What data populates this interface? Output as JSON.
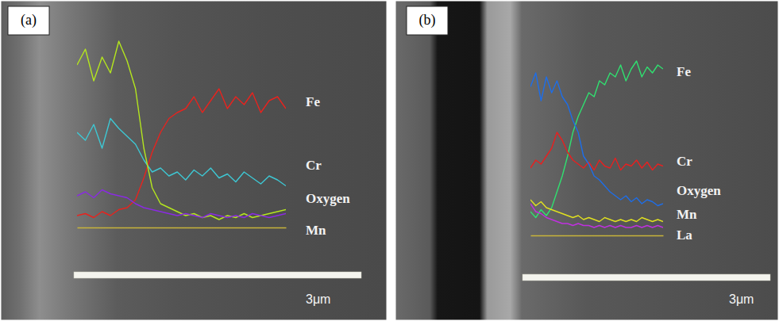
{
  "chart_data": [
    {
      "type": "line",
      "title": "(a)",
      "annotations": [
        "3μm"
      ],
      "tick_labels": false,
      "xlim": [
        0,
        100
      ],
      "ylim": [
        0,
        100
      ],
      "x": [
        0,
        4,
        8,
        12,
        16,
        20,
        24,
        28,
        32,
        36,
        40,
        44,
        48,
        52,
        56,
        60,
        64,
        68,
        72,
        76,
        80,
        84,
        88,
        92,
        96,
        100
      ],
      "series": [
        {
          "name": "Fe",
          "color": "#e8231e",
          "values": [
            6,
            7,
            5,
            8,
            6,
            9,
            10,
            14,
            25,
            38,
            48,
            55,
            58,
            60,
            66,
            58,
            64,
            70,
            60,
            66,
            62,
            68,
            58,
            64,
            66,
            60
          ]
        },
        {
          "name": "Cr",
          "color": "#3ec7d3",
          "values": [
            48,
            44,
            52,
            40,
            55,
            50,
            46,
            42,
            34,
            28,
            30,
            26,
            28,
            24,
            29,
            26,
            30,
            25,
            27,
            23,
            28,
            25,
            22,
            26,
            24,
            21
          ]
        },
        {
          "name": "Oxygen",
          "color": "#b4e61e",
          "values": [
            82,
            90,
            74,
            86,
            78,
            94,
            84,
            70,
            40,
            20,
            12,
            10,
            8,
            6,
            7,
            5,
            6,
            4,
            6,
            5,
            7,
            5,
            6,
            7,
            8,
            9
          ]
        },
        {
          "name": "Mn",
          "color": "#8a2be2",
          "values": [
            16,
            18,
            15,
            19,
            17,
            16,
            15,
            12,
            10,
            9,
            8,
            7,
            6,
            7,
            6,
            5,
            7,
            6,
            5,
            6,
            5,
            7,
            6,
            5,
            6,
            7
          ]
        }
      ]
    },
    {
      "type": "line",
      "title": "(b)",
      "annotations": [
        "3μm"
      ],
      "tick_labels": false,
      "xlim": [
        0,
        100
      ],
      "ylim": [
        0,
        100
      ],
      "x": [
        0,
        4,
        8,
        12,
        16,
        20,
        24,
        28,
        32,
        36,
        40,
        44,
        48,
        52,
        56,
        60,
        64,
        68,
        72,
        76,
        80,
        84,
        88,
        92,
        96,
        100
      ],
      "series": [
        {
          "name": "Fe",
          "color": "#30e070",
          "values": [
            12,
            9,
            13,
            10,
            14,
            22,
            30,
            40,
            52,
            60,
            66,
            72,
            70,
            78,
            76,
            82,
            80,
            86,
            78,
            84,
            88,
            80,
            85,
            82,
            86,
            84
          ]
        },
        {
          "name": "Cr",
          "color": "#e82020",
          "values": [
            34,
            38,
            36,
            40,
            44,
            52,
            48,
            42,
            38,
            36,
            34,
            37,
            33,
            38,
            35,
            34,
            39,
            33,
            36,
            35,
            38,
            34,
            37,
            33,
            36,
            35
          ]
        },
        {
          "name": "Oxygen",
          "color": "#1e6ee8",
          "values": [
            75,
            82,
            68,
            80,
            72,
            78,
            70,
            66,
            58,
            52,
            40,
            36,
            30,
            28,
            25,
            22,
            20,
            18,
            20,
            17,
            19,
            16,
            18,
            17,
            15,
            16
          ]
        },
        {
          "name": "Mn",
          "color": "#e0e020",
          "values": [
            18,
            15,
            17,
            14,
            13,
            12,
            11,
            10,
            9,
            10,
            8,
            9,
            8,
            7,
            9,
            8,
            7,
            8,
            7,
            8,
            7,
            9,
            8,
            7,
            8,
            7
          ]
        },
        {
          "name": "La",
          "color": "#c030e0",
          "values": [
            16,
            12,
            11,
            9,
            8,
            7,
            6,
            6,
            5,
            6,
            5,
            5,
            4,
            5,
            4,
            5,
            4,
            5,
            4,
            4,
            5,
            4,
            5,
            4,
            5,
            4
          ]
        }
      ]
    }
  ]
}
